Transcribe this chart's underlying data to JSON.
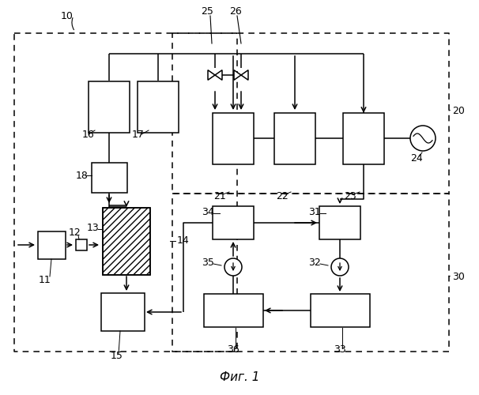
{
  "fig_width": 6.06,
  "fig_height": 5.0,
  "dpi": 100,
  "bg_color": "#ffffff",
  "caption": "Фиг. 1",
  "caption_fontsize": 11,
  "label_fontsize": 9
}
